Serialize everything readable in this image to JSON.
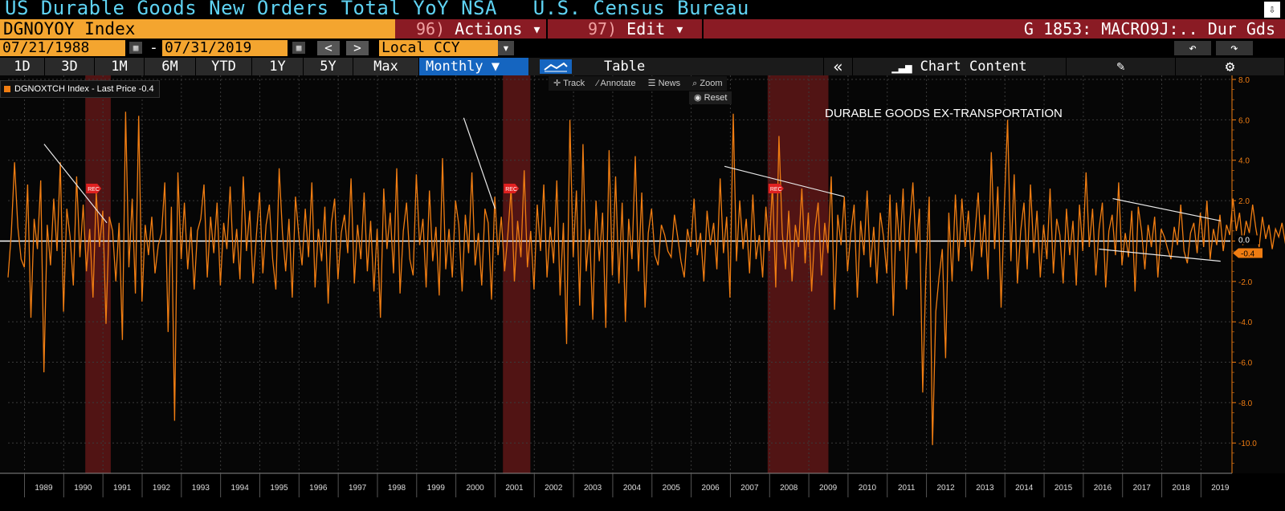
{
  "header": {
    "title": "US Durable Goods New Orders Total YoY NSA   U.S. Census Bureau",
    "ticker": "DGNOYOY Index",
    "actions_num": "96)",
    "actions_label": "Actions ▾",
    "edit_num": "97)",
    "edit_label": "Edit ▾",
    "page_label": "G 1853: MACRO9J:.. Dur Gds"
  },
  "controls": {
    "start_date": "07/21/1988",
    "date_sep": "-",
    "end_date": "07/31/2019",
    "prev": "<",
    "next": ">",
    "currency": "Local CCY",
    "currency_arrow": "▾",
    "undo": "↶",
    "redo": "↷"
  },
  "toolbar": {
    "ranges": [
      "1D",
      "3D",
      "1M",
      "6M",
      "YTD",
      "1Y",
      "5Y",
      "Max"
    ],
    "period": "Monthly ▼",
    "table": "Table",
    "collapse": "«",
    "chart_content": "Chart Content",
    "edit_icon": "pencil-icon",
    "settings_icon": "gear-icon"
  },
  "chart_tools": {
    "track": "Track",
    "annotate": "Annotate",
    "news": "News",
    "zoom": "Zoom",
    "reset": "Reset"
  },
  "legend": {
    "label": "DGNOXTCH Index - Last Price -0.4",
    "color": "#f07d12"
  },
  "chart_data": {
    "type": "line",
    "title": "",
    "annotation": "DURABLE GOODS EX-TRANSPORTATION",
    "xlabel": "",
    "ylabel": "",
    "ylim": [
      -11.5,
      8.2
    ],
    "yticks": [
      8.0,
      6.0,
      4.0,
      2.0,
      0.0,
      -2.0,
      -4.0,
      -6.0,
      -8.0,
      -10.0
    ],
    "ytick_labels": [
      "8.0",
      "6.0",
      "4.0",
      "2.0",
      "0.0",
      "-2.0",
      "-4.0",
      "-6.0",
      "-8.0",
      "-10.0"
    ],
    "x_years": [
      "1989",
      "1990",
      "1991",
      "1992",
      "1993",
      "1994",
      "1995",
      "1996",
      "1997",
      "1998",
      "1999",
      "2000",
      "2001",
      "2002",
      "2003",
      "2004",
      "2005",
      "2006",
      "2007",
      "2008",
      "2009",
      "2010",
      "2011",
      "2012",
      "2013",
      "2014",
      "2015",
      "2016",
      "2017",
      "2018",
      "2019"
    ],
    "last_value": -0.4,
    "last_value_label": "-0.4",
    "zero_label": "0.0",
    "recession_marker": "REC",
    "recessions": [
      [
        1990.55,
        1991.2
      ],
      [
        2001.2,
        2001.9
      ],
      [
        2007.95,
        2009.5
      ]
    ],
    "trendlines": [
      [
        [
          1989.5,
          4.8
        ],
        [
          1991.1,
          0.9
        ]
      ],
      [
        [
          2000.2,
          6.1
        ],
        [
          2001.0,
          1.6
        ]
      ],
      [
        [
          2006.85,
          3.7
        ],
        [
          2009.9,
          2.2
        ]
      ],
      [
        [
          2016.75,
          2.1
        ],
        [
          2019.5,
          1.0
        ]
      ],
      [
        [
          2016.4,
          -0.4
        ],
        [
          2019.5,
          -1.0
        ]
      ]
    ],
    "series": [
      {
        "name": "DGNOXTCH Index - Last Price",
        "color": "#f07d12",
        "x_start": 1988.58,
        "x_step": 0.0833,
        "values": [
          -1.8,
          0.4,
          3.9,
          0.7,
          -0.9,
          -1.3,
          2.8,
          -3.8,
          1.1,
          -0.4,
          3.0,
          -6.5,
          0.8,
          -1.2,
          2.1,
          -0.5,
          3.9,
          -3.5,
          1.6,
          0.2,
          -2.2,
          3.2,
          -0.8,
          1.8,
          -1.5,
          0.6,
          -2.8,
          2.4,
          -0.3,
          1.5,
          -4.1,
          1.2,
          0.5,
          -2.0,
          0.9,
          -4.9,
          6.4,
          -1.3,
          2.1,
          -2.6,
          6.2,
          -3.0,
          0.8,
          -0.7,
          1.2,
          -1.6,
          -0.2,
          0.4,
          2.9,
          -4.5,
          1.7,
          -8.9,
          3.4,
          -0.9,
          1.9,
          -1.4,
          0.7,
          -2.4,
          0.5,
          1.1,
          2.8,
          -1.8,
          1.2,
          -0.6,
          1.9,
          -2.2,
          0.9,
          -0.4,
          2.7,
          -1.1,
          0.6,
          -1.9,
          3.2,
          -0.5,
          1.5,
          -2.1,
          0.2,
          2.4,
          -1.6,
          0.8,
          1.8,
          -0.9,
          -2.4,
          3.6,
          0.4,
          -1.5,
          1.1,
          -2.8,
          2.2,
          0.3,
          -1.2,
          1.6,
          -0.8,
          2.9,
          -2.3,
          0.6,
          -1.0,
          1.7,
          -3.1,
          0.9,
          2.1,
          -1.9,
          0.4,
          1.3,
          -0.6,
          3.1,
          -2.1,
          0.8,
          -0.9,
          2.4,
          -1.5,
          1.0,
          -2.5,
          0.6,
          -3.8,
          2.6,
          -0.4,
          1.4,
          -1.6,
          3.6,
          -2.6,
          0.5,
          1.9,
          -0.9,
          -1.7,
          3.3,
          -0.2,
          1.1,
          -2.3,
          2.5,
          -1.0,
          0.7,
          -2.7,
          4.1,
          -1.4,
          0.6,
          -1.8,
          2.0,
          0.8,
          -2.5,
          1.3,
          -0.6,
          3.4,
          -1.2,
          0.4,
          -2.2,
          1.6,
          0.9,
          -2.9,
          2.2,
          -0.7,
          1.2,
          -1.5,
          0.3,
          2.6,
          -2.0,
          1.0,
          -0.8,
          3.5,
          -1.3,
          0.5,
          -2.4,
          1.8,
          -0.5,
          2.8,
          -1.8,
          0.7,
          -1.1,
          3.0,
          -2.7,
          0.9,
          -5.1,
          6.0,
          -0.8,
          2.5,
          -3.2,
          4.8,
          -1.5,
          0.6,
          -3.9,
          2.0,
          -1.0,
          1.4,
          -4.3,
          4.5,
          -1.7,
          3.2,
          -2.1,
          1.9,
          -4.0,
          1.1,
          -0.9,
          4.2,
          -1.5,
          2.4,
          -3.3,
          0.4,
          1.6,
          -0.7,
          -1.2,
          0.8,
          0.3,
          -0.5,
          -0.8,
          1.3,
          0.2,
          -1.0,
          -1.8,
          0.6,
          -0.3,
          2.1,
          -0.7,
          0.4,
          -2.0,
          1.5,
          -0.2,
          0.9,
          -1.4,
          3.1,
          -0.6,
          1.2,
          -2.8,
          6.3,
          -1.0,
          2.0,
          -0.4,
          1.1,
          -1.6,
          2.3,
          -0.9,
          0.3,
          -1.8,
          1.7,
          -0.5,
          2.8,
          -2.3,
          5.2,
          0.4,
          -1.4,
          1.5,
          -2.0,
          0.8,
          -0.3,
          2.6,
          -1.1,
          1.4,
          -2.5,
          0.6,
          1.9,
          -1.7,
          0.9,
          -0.6,
          3.2,
          -3.4,
          1.3,
          -0.2,
          2.2,
          -1.5,
          0.4,
          1.8,
          -2.8,
          1.0,
          -0.7,
          2.5,
          -1.3,
          0.7,
          -2.1,
          1.4,
          0.2,
          -1.6,
          2.3,
          -3.7,
          1.9,
          -0.5,
          2.6,
          -2.4,
          0.8,
          2.9,
          -0.6,
          1.6,
          -7.5,
          -1.4,
          2.2,
          -10.1,
          -3.5,
          -1.8,
          -0.4,
          -5.8,
          1.4,
          -2.0,
          2.3,
          -1.0,
          2.1,
          -0.3,
          1.5,
          -1.5,
          0.4,
          2.4,
          -0.8,
          1.3,
          -1.9,
          4.4,
          -0.4,
          2.7,
          -3.3,
          1.8,
          6.0,
          -1.0,
          3.3,
          -2.1,
          0.5,
          1.9,
          -1.4,
          2.8,
          -0.6,
          1.5,
          -1.8,
          0.8,
          -0.9,
          2.6,
          -1.6,
          1.1,
          0.3,
          -2.1,
          1.6,
          -0.7,
          1.0,
          -2.2,
          1.8,
          -0.5,
          3.4,
          -0.3,
          1.6,
          -1.7,
          0.6,
          1.9,
          -2.3,
          0.5,
          1.3,
          -0.7,
          2.9,
          -1.2,
          0.4,
          -0.8,
          1.5,
          -2.5,
          1.7,
          0.5,
          -1.4,
          0.8,
          -0.3,
          1.2,
          -1.8,
          0.6,
          0.2,
          -0.4,
          -0.9,
          0.7,
          -0.2,
          1.8,
          -0.5,
          -1.1,
          0.4,
          0.9,
          -0.6,
          1.4,
          -0.3,
          2.0,
          -0.9,
          0.6,
          -0.2,
          1.3,
          -0.5,
          0.8,
          0.3,
          2.1,
          0.5,
          1.4,
          -0.2,
          1.0,
          0.4,
          1.8,
          0.6,
          -0.3,
          1.2,
          0.1,
          0.8,
          -0.4,
          0.6,
          0.2,
          0.9,
          -0.1,
          0.3,
          0.7,
          -0.4
        ]
      }
    ]
  }
}
